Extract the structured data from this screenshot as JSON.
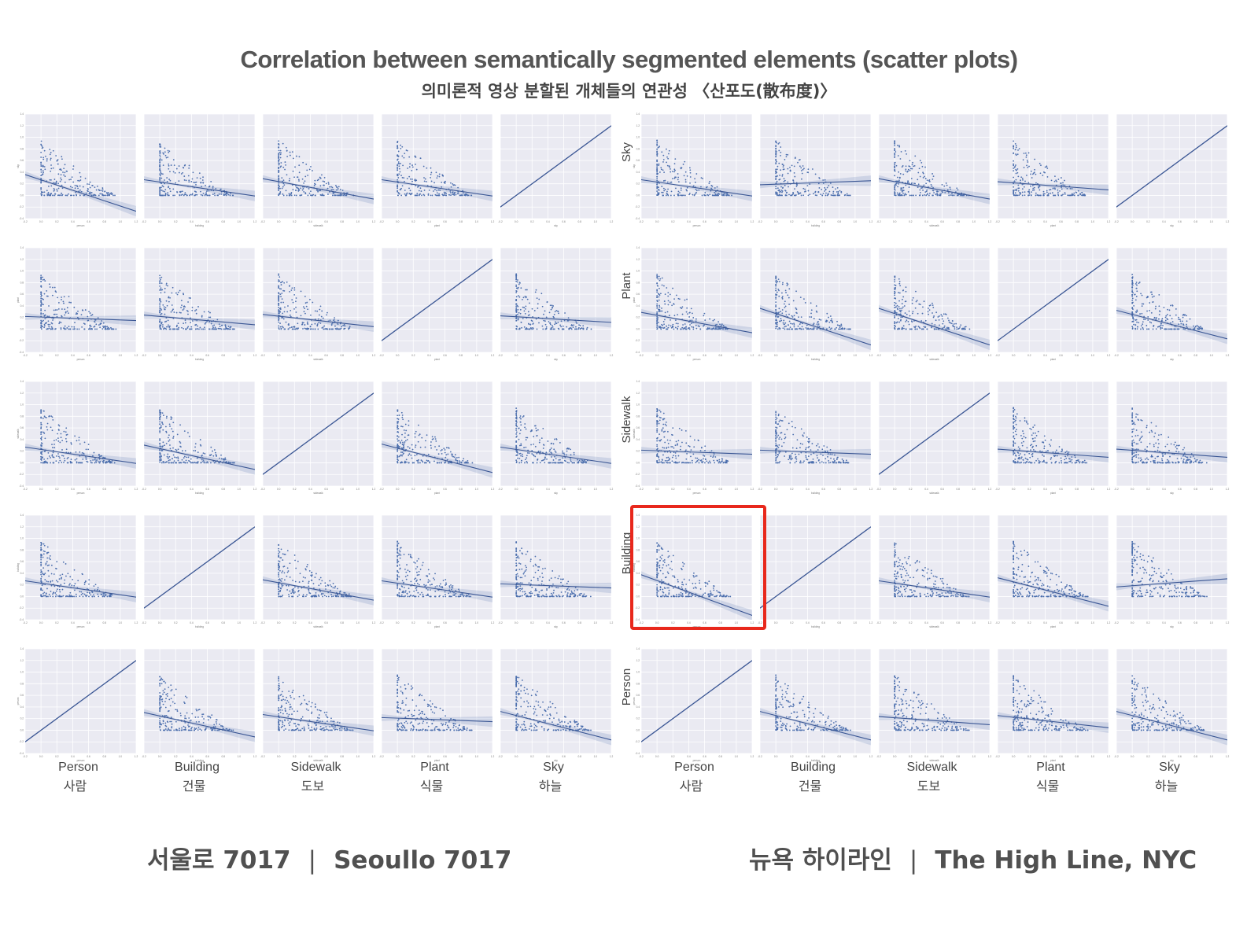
{
  "title": "Correlation between semantically segmented elements (scatter plots)",
  "subtitle": "의미론적 영상 분할된 개체들의 연관성 〈산포도(散布度)〉",
  "footer": {
    "left": {
      "kr": "서울로 7017",
      "sep": "|",
      "en": "Seoullo 7017"
    },
    "right": {
      "kr": "뉴욕 하이라인",
      "sep": "|",
      "en": "The High Line, NYC"
    }
  },
  "colors": {
    "points": "#4c6fae",
    "regression": "#3a5694",
    "panel_bg": "#eaeaf2",
    "grid": "#ffffff",
    "highlight": "#e8281c"
  },
  "chart_data": [
    {
      "type": "scatter",
      "title": "",
      "location": "Seoullo 7017",
      "variables_x": [
        "person",
        "building",
        "sidewalk",
        "plant",
        "sky"
      ],
      "variables_y_top_to_bottom": [
        "sky",
        "plant",
        "sidewalk",
        "building",
        "person"
      ],
      "column_labels": [
        {
          "en": "Person",
          "kr": "사람"
        },
        {
          "en": "Building",
          "kr": "건물"
        },
        {
          "en": "Sidewalk",
          "kr": "도보"
        },
        {
          "en": "Plant",
          "kr": "식물"
        },
        {
          "en": "Sky",
          "kr": "하늘"
        }
      ],
      "row_labels": [],
      "xlim": [
        -0.2,
        1.2
      ],
      "ylim": [
        -0.4,
        1.4
      ],
      "ticks": [
        "-0.2",
        "0.0",
        "0.2",
        "0.4",
        "0.6",
        "0.8",
        "1.0",
        "1.2"
      ],
      "yticks": [
        "-0.4",
        "-0.2",
        "0.0",
        "0.2",
        "0.4",
        "0.6",
        "0.8",
        "1.0",
        "1.2",
        "1.4"
      ],
      "grid": true,
      "regression_slopes": [
        [
          -0.45,
          -0.2,
          -0.25,
          -0.2,
          1.0
        ],
        [
          -0.05,
          -0.12,
          -0.15,
          1.0,
          -0.08
        ],
        [
          -0.2,
          -0.3,
          1.0,
          -0.35,
          -0.2
        ],
        [
          -0.2,
          1.0,
          -0.25,
          -0.2,
          -0.05
        ],
        [
          1.0,
          -0.3,
          -0.2,
          -0.05,
          -0.35
        ]
      ]
    },
    {
      "type": "scatter",
      "title": "",
      "location": "The High Line, NYC",
      "variables_x": [
        "person",
        "building",
        "sidewalk",
        "plant",
        "sky"
      ],
      "variables_y_top_to_bottom": [
        "sky",
        "plant",
        "sidewalk",
        "building",
        "person"
      ],
      "column_labels": [
        {
          "en": "Person",
          "kr": "사람"
        },
        {
          "en": "Building",
          "kr": "건물"
        },
        {
          "en": "Sidewalk",
          "kr": "도보"
        },
        {
          "en": "Plant",
          "kr": "식물"
        },
        {
          "en": "Sky",
          "kr": "하늘"
        }
      ],
      "row_labels": [
        "Sky",
        "Plant",
        "Sidewalk",
        "Building",
        "Person"
      ],
      "xlim": [
        -0.2,
        1.2
      ],
      "ylim": [
        -0.4,
        1.4
      ],
      "ticks": [
        "-0.2",
        "0.0",
        "0.2",
        "0.4",
        "0.6",
        "0.8",
        "1.0",
        "1.2"
      ],
      "yticks": [
        "-0.4",
        "-0.2",
        "0.0",
        "0.2",
        "0.4",
        "0.6",
        "0.8",
        "1.0",
        "1.2",
        "1.4"
      ],
      "grid": true,
      "highlighted_panel": {
        "row": "Building",
        "column": "Person"
      },
      "regression_slopes": [
        [
          -0.2,
          0.05,
          -0.25,
          -0.1,
          1.0
        ],
        [
          -0.25,
          -0.45,
          -0.45,
          1.0,
          -0.35
        ],
        [
          -0.05,
          -0.05,
          1.0,
          -0.1,
          -0.1
        ],
        [
          -0.5,
          1.0,
          -0.2,
          -0.35,
          0.1
        ],
        [
          1.0,
          -0.35,
          -0.1,
          -0.15,
          -0.35
        ]
      ]
    }
  ]
}
